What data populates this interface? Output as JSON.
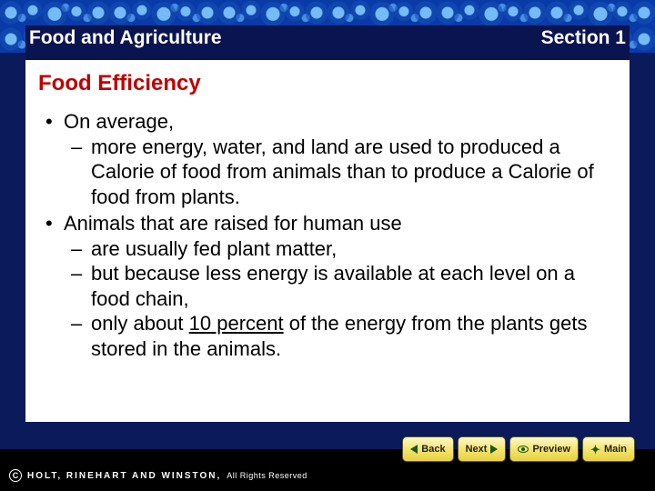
{
  "header": {
    "left": "Food and Agriculture",
    "right": "Section 1",
    "text_color": "#ffffff",
    "background_color": "#0a1550",
    "fontsize": 21
  },
  "title": {
    "text": "Food Efficiency",
    "color": "#c00000",
    "fontsize": 24
  },
  "body": {
    "text_color": "#000000",
    "fontsize": 22,
    "items": [
      {
        "text": "On average,",
        "sub": [
          "more energy, water, and land are used to produced a Calorie of food from animals than to produce a Calorie of food from plants."
        ]
      },
      {
        "text": "Animals that are raised for human use",
        "sub": [
          "are usually fed plant matter,",
          "but because less energy is available at each level on a food chain,",
          "only about 10 percent of the energy from the plants gets stored in the animals."
        ],
        "underline_in_sub_index": 2,
        "underline_text": "10 percent"
      }
    ]
  },
  "background": {
    "content_color": "#ffffff",
    "border_color": "#0a3aa8",
    "slide_color": "#0a1a5a"
  },
  "nav": {
    "back": "Back",
    "next": "Next",
    "preview": "Preview",
    "main": "Main",
    "button_bg_top": "#fff8c8",
    "button_bg_bottom": "#e8d040",
    "icon_color": "#1a5a1a"
  },
  "footer": {
    "background_color": "#000000",
    "publisher": "HOLT, RINEHART AND WINSTON,",
    "rights": "All Rights Reserved",
    "text_color": "#ffffff"
  }
}
